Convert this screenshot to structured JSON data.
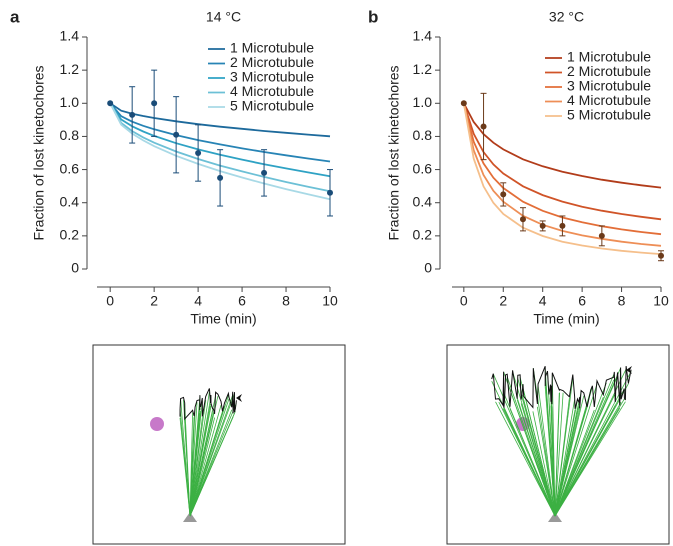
{
  "chart_data": [
    {
      "type": "line",
      "panel": "a",
      "title": "14 °C",
      "xlabel": "Time (min)",
      "ylabel": "Fraction of lost kinetochores",
      "x": [
        0,
        0.5,
        1,
        1.5,
        2,
        3,
        4,
        5,
        6,
        7,
        8,
        9,
        10
      ],
      "series": [
        {
          "name": "1 Microtubule",
          "color": "#1d6a9c",
          "values": [
            1,
            0.955,
            0.937,
            0.923,
            0.911,
            0.891,
            0.874,
            0.859,
            0.846,
            0.833,
            0.822,
            0.811,
            0.801
          ]
        },
        {
          "name": "2 Microtubule",
          "color": "#2784b5",
          "values": [
            1,
            0.922,
            0.889,
            0.864,
            0.843,
            0.808,
            0.778,
            0.752,
            0.728,
            0.706,
            0.686,
            0.667,
            0.649
          ]
        },
        {
          "name": "3 Microtubule",
          "color": "#2ea2c4",
          "values": [
            1,
            0.902,
            0.861,
            0.83,
            0.803,
            0.759,
            0.722,
            0.689,
            0.66,
            0.632,
            0.607,
            0.583,
            0.56
          ]
        },
        {
          "name": "4 Microtubule",
          "color": "#6cc0d6",
          "values": [
            1,
            0.881,
            0.832,
            0.794,
            0.762,
            0.709,
            0.664,
            0.624,
            0.589,
            0.556,
            0.525,
            0.496,
            0.469
          ]
        },
        {
          "name": "5 Microtubule",
          "color": "#a8d9e6",
          "values": [
            1,
            0.871,
            0.817,
            0.776,
            0.741,
            0.683,
            0.634,
            0.591,
            0.552,
            0.516,
            0.482,
            0.451,
            0.421
          ]
        }
      ],
      "points": {
        "color": "#1a4c78",
        "x": [
          0,
          1,
          2,
          3,
          4,
          5,
          7,
          10
        ],
        "values": [
          1,
          0.93,
          1.0,
          0.81,
          0.7,
          0.55,
          0.58,
          0.46
        ],
        "errors": [
          null,
          0.17,
          0.2,
          0.23,
          0.17,
          0.17,
          0.14,
          0.14
        ]
      },
      "xlim": [
        -0.6,
        10
      ],
      "ylim": [
        0,
        1.4
      ],
      "xticks": [
        0,
        2,
        4,
        6,
        8,
        10
      ],
      "yticks": [
        0,
        0.2,
        0.4,
        0.6,
        0.8,
        {
          "value": 1,
          "label": "1.0"
        },
        1.2,
        1.4
      ]
    },
    {
      "type": "line",
      "panel": "b",
      "title": "32 °C",
      "xlabel": "Time (min)",
      "ylabel": "Fraction of lost kinetochores",
      "x": [
        0,
        0.5,
        1,
        1.5,
        2,
        3,
        4,
        5,
        6,
        7,
        8,
        9,
        10
      ],
      "series": [
        {
          "name": "1 Microtubule",
          "color": "#b23c1a",
          "values": [
            1,
            0.887,
            0.814,
            0.762,
            0.722,
            0.662,
            0.62,
            0.587,
            0.561,
            0.539,
            0.521,
            0.505,
            0.491
          ]
        },
        {
          "name": "2 Microtubule",
          "color": "#d05428",
          "values": [
            1,
            0.816,
            0.706,
            0.631,
            0.576,
            0.499,
            0.446,
            0.407,
            0.376,
            0.352,
            0.332,
            0.315,
            0.3
          ]
        },
        {
          "name": "3 Microtubule",
          "color": "#e36e38",
          "values": [
            1,
            0.768,
            0.637,
            0.551,
            0.489,
            0.406,
            0.351,
            0.311,
            0.282,
            0.258,
            0.239,
            0.223,
            0.21
          ]
        },
        {
          "name": "4 Microtubule",
          "color": "#ee8e56",
          "values": [
            1,
            0.717,
            0.567,
            0.472,
            0.406,
            0.321,
            0.267,
            0.23,
            0.203,
            0.182,
            0.165,
            0.151,
            0.14
          ]
        },
        {
          "name": "5 Microtubule",
          "color": "#f5bf8b",
          "values": [
            1,
            0.666,
            0.499,
            0.399,
            0.332,
            0.249,
            0.199,
            0.165,
            0.142,
            0.124,
            0.11,
            0.099,
            0.09
          ]
        }
      ],
      "points": {
        "color": "#6b3a1a",
        "x": [
          0,
          1,
          2,
          3,
          4,
          5,
          7,
          10
        ],
        "values": [
          1,
          0.86,
          0.45,
          0.3,
          0.26,
          0.26,
          0.2,
          0.08
        ],
        "errors": [
          null,
          0.2,
          0.07,
          0.07,
          0.03,
          0.06,
          0.06,
          0.03
        ]
      },
      "xlim": [
        -0.6,
        10
      ],
      "ylim": [
        0,
        1.4
      ],
      "xticks": [
        0,
        2,
        4,
        6,
        8,
        10
      ],
      "yticks": [
        0,
        0.2,
        0.4,
        0.6,
        0.8,
        {
          "value": 1,
          "label": "1.0"
        },
        1.2,
        1.4
      ]
    }
  ]
}
